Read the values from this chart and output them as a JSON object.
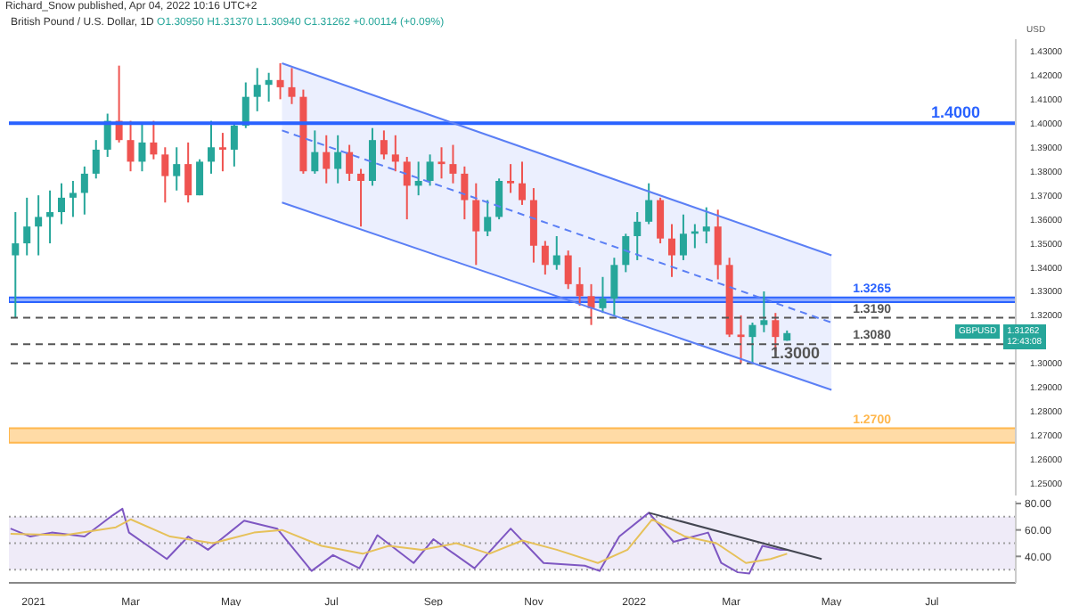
{
  "chart_data": [
    {
      "type": "candlestick",
      "title": "British Pound / U.S. Dollar, 1D",
      "subtitle": "O1.30950 H1.31370 L1.30940 C1.31262 +0.00114 (+0.09%)",
      "ylabel": "USD",
      "annotations": [
        "Richard_Snow published, Apr 04, 2022 10:16 UTC+2",
        "GBPUSD",
        "1.31262",
        "12:43:08"
      ],
      "x": [
        "2020-12-21",
        "2020-12-28",
        "2021-01-04",
        "2021-01-11",
        "2021-01-18",
        "2021-01-25",
        "2021-02-01",
        "2021-02-08",
        "2021-02-15",
        "2021-02-22",
        "2021-03-01",
        "2021-03-08",
        "2021-03-15",
        "2021-03-22",
        "2021-03-29",
        "2021-04-05",
        "2021-04-12",
        "2021-04-19",
        "2021-04-26",
        "2021-05-03",
        "2021-05-10",
        "2021-05-17",
        "2021-05-24",
        "2021-05-31",
        "2021-06-07",
        "2021-06-14",
        "2021-06-21",
        "2021-06-28",
        "2021-07-05",
        "2021-07-12",
        "2021-07-19",
        "2021-07-26",
        "2021-08-02",
        "2021-08-09",
        "2021-08-16",
        "2021-08-23",
        "2021-08-30",
        "2021-09-06",
        "2021-09-13",
        "2021-09-20",
        "2021-09-27",
        "2021-10-04",
        "2021-10-11",
        "2021-10-18",
        "2021-10-25",
        "2021-11-01",
        "2021-11-08",
        "2021-11-15",
        "2021-11-22",
        "2021-11-29",
        "2021-12-06",
        "2021-12-13",
        "2021-12-20",
        "2021-12-27",
        "2022-01-03",
        "2022-01-10",
        "2022-01-17",
        "2022-01-24",
        "2022-01-31",
        "2022-02-07",
        "2022-02-14",
        "2022-02-21",
        "2022-02-28",
        "2022-03-07",
        "2022-03-14",
        "2022-03-21",
        "2022-03-28",
        "2022-04-04"
      ],
      "ohlc": [
        [
          1.345,
          1.363,
          1.319,
          1.35
        ],
        [
          1.35,
          1.369,
          1.345,
          1.357
        ],
        [
          1.357,
          1.37,
          1.345,
          1.361
        ],
        [
          1.361,
          1.372,
          1.35,
          1.363
        ],
        [
          1.363,
          1.375,
          1.358,
          1.369
        ],
        [
          1.369,
          1.376,
          1.361,
          1.371
        ],
        [
          1.371,
          1.382,
          1.362,
          1.379
        ],
        [
          1.379,
          1.393,
          1.377,
          1.389
        ],
        [
          1.389,
          1.404,
          1.386,
          1.401
        ],
        [
          1.401,
          1.424,
          1.392,
          1.393
        ],
        [
          1.393,
          1.401,
          1.38,
          1.384
        ],
        [
          1.384,
          1.4,
          1.38,
          1.392
        ],
        [
          1.392,
          1.401,
          1.385,
          1.387
        ],
        [
          1.387,
          1.39,
          1.367,
          1.378
        ],
        [
          1.378,
          1.39,
          1.372,
          1.383
        ],
        [
          1.383,
          1.392,
          1.367,
          1.37
        ],
        [
          1.37,
          1.385,
          1.37,
          1.384
        ],
        [
          1.384,
          1.401,
          1.379,
          1.39
        ],
        [
          1.39,
          1.396,
          1.38,
          1.389
        ],
        [
          1.389,
          1.4,
          1.382,
          1.399
        ],
        [
          1.399,
          1.417,
          1.398,
          1.411
        ],
        [
          1.411,
          1.423,
          1.405,
          1.416
        ],
        [
          1.416,
          1.421,
          1.409,
          1.418
        ],
        [
          1.418,
          1.425,
          1.41,
          1.415
        ],
        [
          1.415,
          1.423,
          1.408,
          1.411
        ],
        [
          1.411,
          1.414,
          1.379,
          1.38
        ],
        [
          1.38,
          1.397,
          1.379,
          1.388
        ],
        [
          1.388,
          1.395,
          1.375,
          1.381
        ],
        [
          1.381,
          1.395,
          1.375,
          1.388
        ],
        [
          1.388,
          1.391,
          1.376,
          1.379
        ],
        [
          1.379,
          1.381,
          1.357,
          1.376
        ],
        [
          1.376,
          1.398,
          1.374,
          1.393
        ],
        [
          1.393,
          1.397,
          1.385,
          1.387
        ],
        [
          1.387,
          1.395,
          1.38,
          1.384
        ],
        [
          1.384,
          1.386,
          1.36,
          1.374
        ],
        [
          1.374,
          1.384,
          1.37,
          1.376
        ],
        [
          1.376,
          1.387,
          1.374,
          1.384
        ],
        [
          1.384,
          1.39,
          1.377,
          1.383
        ],
        [
          1.383,
          1.391,
          1.375,
          1.379
        ],
        [
          1.379,
          1.382,
          1.36,
          1.368
        ],
        [
          1.368,
          1.375,
          1.341,
          1.355
        ],
        [
          1.355,
          1.368,
          1.353,
          1.361
        ],
        [
          1.361,
          1.377,
          1.36,
          1.376
        ],
        [
          1.376,
          1.383,
          1.371,
          1.375
        ],
        [
          1.375,
          1.384,
          1.366,
          1.368
        ],
        [
          1.368,
          1.373,
          1.342,
          1.349
        ],
        [
          1.349,
          1.351,
          1.337,
          1.341
        ],
        [
          1.341,
          1.353,
          1.339,
          1.345
        ],
        [
          1.345,
          1.347,
          1.331,
          1.333
        ],
        [
          1.333,
          1.34,
          1.324,
          1.328
        ],
        [
          1.328,
          1.333,
          1.316,
          1.323
        ],
        [
          1.323,
          1.336,
          1.321,
          1.327
        ],
        [
          1.327,
          1.344,
          1.32,
          1.341
        ],
        [
          1.341,
          1.354,
          1.338,
          1.353
        ],
        [
          1.353,
          1.363,
          1.343,
          1.359
        ],
        [
          1.359,
          1.375,
          1.358,
          1.368
        ],
        [
          1.368,
          1.369,
          1.35,
          1.352
        ],
        [
          1.352,
          1.358,
          1.336,
          1.345
        ],
        [
          1.345,
          1.362,
          1.343,
          1.354
        ],
        [
          1.354,
          1.358,
          1.348,
          1.355
        ],
        [
          1.355,
          1.365,
          1.35,
          1.357
        ],
        [
          1.357,
          1.364,
          1.335,
          1.341
        ],
        [
          1.341,
          1.344,
          1.311,
          1.312
        ],
        [
          1.312,
          1.32,
          1.3,
          1.311
        ],
        [
          1.311,
          1.317,
          1.3,
          1.316
        ],
        [
          1.316,
          1.33,
          1.313,
          1.318
        ],
        [
          1.318,
          1.321,
          1.305,
          1.311
        ],
        [
          1.3095,
          1.3137,
          1.3094,
          1.31262
        ]
      ],
      "colors": [
        "#26a69a",
        "#26a69a",
        "#26a69a",
        "#26a69a",
        "#26a69a",
        "#26a69a",
        "#26a69a",
        "#26a69a",
        "#26a69a",
        "#ef5350",
        "#ef5350",
        "#26a69a",
        "#ef5350",
        "#ef5350",
        "#26a69a",
        "#ef5350",
        "#26a69a",
        "#26a69a",
        "#ef5350",
        "#26a69a",
        "#26a69a",
        "#26a69a",
        "#26a69a",
        "#ef5350",
        "#ef5350",
        "#ef5350",
        "#26a69a",
        "#ef5350",
        "#26a69a",
        "#ef5350",
        "#ef5350",
        "#26a69a",
        "#ef5350",
        "#ef5350",
        "#ef5350",
        "#26a69a",
        "#26a69a",
        "#ef5350",
        "#ef5350",
        "#ef5350",
        "#ef5350",
        "#26a69a",
        "#26a69a",
        "#ef5350",
        "#ef5350",
        "#ef5350",
        "#ef5350",
        "#26a69a",
        "#ef5350",
        "#ef5350",
        "#ef5350",
        "#26a69a",
        "#26a69a",
        "#26a69a",
        "#26a69a",
        "#26a69a",
        "#ef5350",
        "#ef5350",
        "#26a69a",
        "#26a69a",
        "#26a69a",
        "#ef5350",
        "#ef5350",
        "#ef5350",
        "#26a69a",
        "#26a69a",
        "#ef5350",
        "#26a69a"
      ],
      "series": [
        {
          "type": "line",
          "x": [
            "2021-06-01",
            "2022-05-01"
          ],
          "values": [
            1.397,
            1.317
          ],
          "lower": [
            1.367,
            1.289
          ],
          "upper": [
            1.425,
            1.345
          ],
          "color": "#5b7ff5",
          "line_style": "dashed"
        },
        {
          "type": "line",
          "x": [
            "2021-06-01",
            "2022-05-01"
          ],
          "values": [
            1.425,
            1.345
          ],
          "color": "#5b7ff5",
          "line_style": "solid"
        },
        {
          "type": "line",
          "x": [
            "2021-06-01",
            "2022-05-01"
          ],
          "values": [
            1.367,
            1.289
          ],
          "color": "#5b7ff5",
          "line_style": "solid"
        }
      ],
      "xlim": [
        "2020-12-17",
        "2022-08-21"
      ],
      "ylim": [
        1.245,
        1.435
      ],
      "yticks": [
        {
          "value": 1.25,
          "label": "1.25000"
        },
        {
          "value": 1.26,
          "label": "1.26000"
        },
        {
          "value": 1.27,
          "label": "1.27000"
        },
        {
          "value": 1.28,
          "label": "1.28000"
        },
        {
          "value": 1.29,
          "label": "1.29000"
        },
        {
          "value": 1.3,
          "label": "1.30000"
        },
        {
          "value": 1.31,
          "label": null
        },
        {
          "value": 1.32,
          "label": "1.32000"
        },
        {
          "value": 1.33,
          "label": "1.33000"
        },
        {
          "value": 1.34,
          "label": "1.34000"
        },
        {
          "value": 1.35,
          "label": "1.35000"
        },
        {
          "value": 1.36,
          "label": "1.36000"
        },
        {
          "value": 1.37,
          "label": "1.37000"
        },
        {
          "value": 1.38,
          "label": "1.38000"
        },
        {
          "value": 1.39,
          "label": "1.39000"
        },
        {
          "value": 1.4,
          "label": "1.40000"
        },
        {
          "value": 1.41,
          "label": "1.41000"
        },
        {
          "value": 1.42,
          "label": "1.42000"
        },
        {
          "value": 1.43,
          "label": "1.43000"
        }
      ],
      "ref_lines": [
        {
          "axis": "y",
          "value": 1.4,
          "label": "1.4000",
          "color": "#2962ff",
          "line_style": "solid"
        },
        {
          "axis": "y",
          "value": 1.319,
          "label": "1.3190",
          "color": "#555555",
          "line_style": "dashed"
        },
        {
          "axis": "y",
          "value": 1.308,
          "label": "1.3080",
          "color": "#555555",
          "line_style": "dashed"
        },
        {
          "axis": "y",
          "value": 1.3,
          "label": "1.3000",
          "color": "#555555",
          "line_style": "dashed"
        }
      ],
      "bands": [
        {
          "axis": "y",
          "from": 1.3255,
          "to": 1.3275,
          "label": "1.3265",
          "color": "#2962ff"
        },
        {
          "axis": "y",
          "from": 1.267,
          "to": 1.273,
          "label": "1.2700",
          "color": "#ffb74d"
        }
      ],
      "tick_labels": "y",
      "grid": false
    },
    {
      "type": "line",
      "series": [
        {
          "color": "#7e57c2",
          "x": [
            "2020-12-18",
            "2020-12-30",
            "2021-01-12",
            "2021-02-01",
            "2021-02-18",
            "2021-02-24",
            "2021-02-28",
            "2021-03-23",
            "2021-04-05",
            "2021-04-17",
            "2021-05-09",
            "2021-05-29",
            "2021-06-19",
            "2021-07-02",
            "2021-07-18",
            "2021-07-29",
            "2021-08-20",
            "2021-09-01",
            "2021-09-26",
            "2021-10-18",
            "2021-11-07",
            "2021-12-02",
            "2021-12-11",
            "2021-12-23",
            "2022-01-10",
            "2022-01-25",
            "2022-02-15",
            "2022-02-23",
            "2022-03-05",
            "2022-03-12",
            "2022-03-20",
            "2022-03-31",
            "2022-04-04"
          ],
          "values": [
            61,
            55,
            58,
            55,
            71,
            76,
            58,
            38,
            55,
            45,
            67,
            61,
            29,
            41,
            31,
            56,
            35,
            53,
            31,
            61,
            35,
            33,
            29,
            55,
            73,
            51,
            58,
            35,
            28,
            27,
            48,
            45,
            45
          ]
        },
        {
          "color": "#e6c15a",
          "x": [
            "2020-12-18",
            "2021-01-20",
            "2021-02-20",
            "2021-03-01",
            "2021-03-25",
            "2021-04-20",
            "2021-05-15",
            "2021-06-01",
            "2021-06-25",
            "2021-07-20",
            "2021-08-05",
            "2021-08-25",
            "2021-09-15",
            "2021-10-05",
            "2021-10-25",
            "2021-11-15",
            "2021-12-10",
            "2021-12-28",
            "2022-01-12",
            "2022-02-01",
            "2022-02-20",
            "2022-03-10",
            "2022-03-25",
            "2022-04-04"
          ],
          "values": [
            57,
            56,
            62,
            68,
            55,
            50,
            58,
            60,
            48,
            42,
            48,
            45,
            50,
            42,
            52,
            45,
            35,
            45,
            68,
            55,
            50,
            35,
            38,
            42
          ]
        },
        {
          "color": "#434651",
          "x": [
            "2022-01-10",
            "2022-04-25"
          ],
          "values": [
            73,
            38
          ]
        }
      ],
      "bands": [
        {
          "axis": "y",
          "from": 30,
          "to": 70,
          "color": "#7e57c2"
        }
      ],
      "ref_lines": [
        {
          "axis": "y",
          "value": 30,
          "color": "#9e9e9e",
          "line_style": "dotted"
        },
        {
          "axis": "y",
          "value": 50,
          "color": "#9e9e9e",
          "line_style": "dotted"
        },
        {
          "axis": "y",
          "value": 70,
          "color": "#9e9e9e",
          "line_style": "dotted"
        }
      ],
      "xlim": [
        "2020-12-17",
        "2022-08-21"
      ],
      "xticks": [
        {
          "value": "2021-01-01",
          "label": "2021"
        },
        {
          "value": "2021-03-01",
          "label": "Mar"
        },
        {
          "value": "2021-05-01",
          "label": "May"
        },
        {
          "value": "2021-07-01",
          "label": "Jul"
        },
        {
          "value": "2021-09-01",
          "label": "Sep"
        },
        {
          "value": "2021-11-01",
          "label": "Nov"
        },
        {
          "value": "2022-01-01",
          "label": "2022"
        },
        {
          "value": "2022-03-01",
          "label": "Mar"
        },
        {
          "value": "2022-05-01",
          "label": "May"
        },
        {
          "value": "2022-07-01",
          "label": "Jul"
        }
      ],
      "ylim": [
        20,
        82
      ],
      "yticks": [
        {
          "value": 40,
          "label": "40.00"
        },
        {
          "value": 60,
          "label": "60.00"
        },
        {
          "value": 80,
          "label": "80.00"
        }
      ],
      "grid": false
    }
  ]
}
